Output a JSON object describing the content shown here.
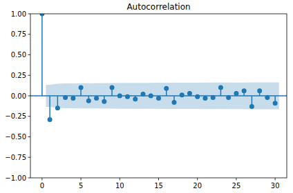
{
  "chart_data": {
    "type": "stem",
    "title": "Autocorrelation",
    "x": [
      0,
      1,
      2,
      3,
      4,
      5,
      6,
      7,
      8,
      9,
      10,
      11,
      12,
      13,
      14,
      15,
      16,
      17,
      18,
      19,
      20,
      21,
      22,
      23,
      24,
      25,
      26,
      27,
      28,
      29,
      30
    ],
    "values": [
      1.0,
      -0.29,
      -0.15,
      -0.02,
      -0.03,
      0.1,
      -0.06,
      -0.03,
      -0.07,
      0.1,
      0.0,
      -0.01,
      -0.04,
      0.02,
      0.0,
      -0.03,
      0.09,
      -0.08,
      0.01,
      0.03,
      -0.01,
      -0.03,
      -0.02,
      0.1,
      -0.02,
      0.03,
      0.06,
      -0.13,
      0.06,
      -0.02,
      -0.09
    ],
    "color": "#1f77b4",
    "confidence_band": {
      "x": [
        0.5,
        1,
        2,
        3,
        4,
        5,
        6,
        7,
        8,
        9,
        10,
        11,
        12,
        13,
        14,
        15,
        16,
        17,
        18,
        19,
        20,
        21,
        22,
        23,
        24,
        25,
        26,
        27,
        28,
        29,
        30,
        30.5
      ],
      "upper": [
        0.135,
        0.135,
        0.148,
        0.152,
        0.152,
        0.153,
        0.154,
        0.154,
        0.155,
        0.156,
        0.157,
        0.157,
        0.158,
        0.158,
        0.158,
        0.159,
        0.159,
        0.16,
        0.16,
        0.16,
        0.16,
        0.161,
        0.161,
        0.161,
        0.162,
        0.162,
        0.162,
        0.163,
        0.164,
        0.164,
        0.164,
        0.164
      ],
      "lower": [
        -0.135,
        -0.135,
        -0.148,
        -0.152,
        -0.152,
        -0.153,
        -0.154,
        -0.154,
        -0.155,
        -0.156,
        -0.157,
        -0.157,
        -0.158,
        -0.158,
        -0.158,
        -0.159,
        -0.159,
        -0.16,
        -0.16,
        -0.16,
        -0.16,
        -0.161,
        -0.161,
        -0.161,
        -0.162,
        -0.162,
        -0.162,
        -0.163,
        -0.164,
        -0.164,
        -0.164,
        -0.164
      ]
    },
    "xlim": [
      -1.5,
      31.5
    ],
    "ylim": [
      -1,
      1
    ],
    "xticks": [
      0,
      5,
      10,
      15,
      20,
      25,
      30
    ],
    "yticks": [
      {
        "value": -1,
        "label": "−1.00"
      },
      {
        "value": -0.75,
        "label": "−0.75"
      },
      {
        "value": -0.5,
        "label": "−0.50"
      },
      {
        "value": -0.25,
        "label": "−0.25"
      },
      {
        "value": 0,
        "label": "0.00"
      },
      {
        "value": 0.25,
        "label": "0.25"
      },
      {
        "value": 0.5,
        "label": "0.50"
      },
      {
        "value": 0.75,
        "label": "0.75"
      },
      {
        "value": 1,
        "label": "1.00"
      }
    ],
    "grid": false,
    "marker": "circle"
  }
}
